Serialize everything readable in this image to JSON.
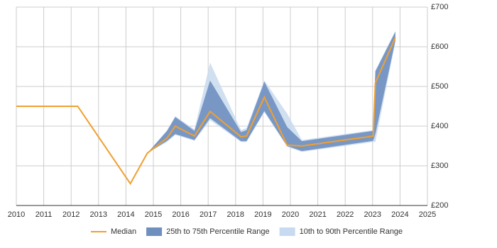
{
  "chart_data": {
    "type": "line_band",
    "x": [
      2010,
      2012.24,
      2014.16,
      2014.78,
      2015.5,
      2015.8,
      2016.5,
      2017.07,
      2018.2,
      2018.4,
      2019.05,
      2019.88,
      2020.42,
      2023.02,
      2023.1,
      2023.83
    ],
    "series": [
      {
        "name": "Median",
        "color": "#f0a030",
        "values": [
          450,
          450,
          255,
          332,
          370,
          400,
          375,
          437,
          373,
          375,
          473,
          352,
          350,
          375,
          509,
          623
        ]
      },
      {
        "name": "25th to 75th Percentile Range",
        "color": "#6f8fbf",
        "low": [
          null,
          null,
          null,
          332,
          363,
          380,
          365,
          420,
          362,
          362,
          438,
          350,
          337,
          363,
          380,
          615
        ],
        "high": [
          null,
          null,
          null,
          332,
          388,
          423,
          388,
          515,
          385,
          390,
          512,
          398,
          362,
          388,
          538,
          638
        ]
      },
      {
        "name": "10th to 90th Percentile Range",
        "color": "#c8daef",
        "low": [
          null,
          null,
          null,
          332,
          360,
          378,
          363,
          415,
          360,
          360,
          435,
          348,
          335,
          360,
          360,
          612
        ],
        "high": [
          null,
          null,
          null,
          332,
          390,
          425,
          392,
          560,
          390,
          395,
          515,
          432,
          365,
          390,
          540,
          640
        ]
      }
    ],
    "xlim": [
      2010,
      2025
    ],
    "xticks": [
      2010,
      2011,
      2012,
      2013,
      2014,
      2015,
      2016,
      2017,
      2018,
      2019,
      2020,
      2021,
      2022,
      2023,
      2024,
      2025
    ],
    "ylim": [
      200,
      700
    ],
    "yticks": [
      {
        "value": 200,
        "label": "£200"
      },
      {
        "value": 300,
        "label": "£300"
      },
      {
        "value": 400,
        "label": "£400"
      },
      {
        "value": 500,
        "label": "£500"
      },
      {
        "value": 600,
        "label": "£600"
      },
      {
        "value": 700,
        "label": "£700"
      }
    ],
    "grid": true,
    "legend": "bottom"
  }
}
